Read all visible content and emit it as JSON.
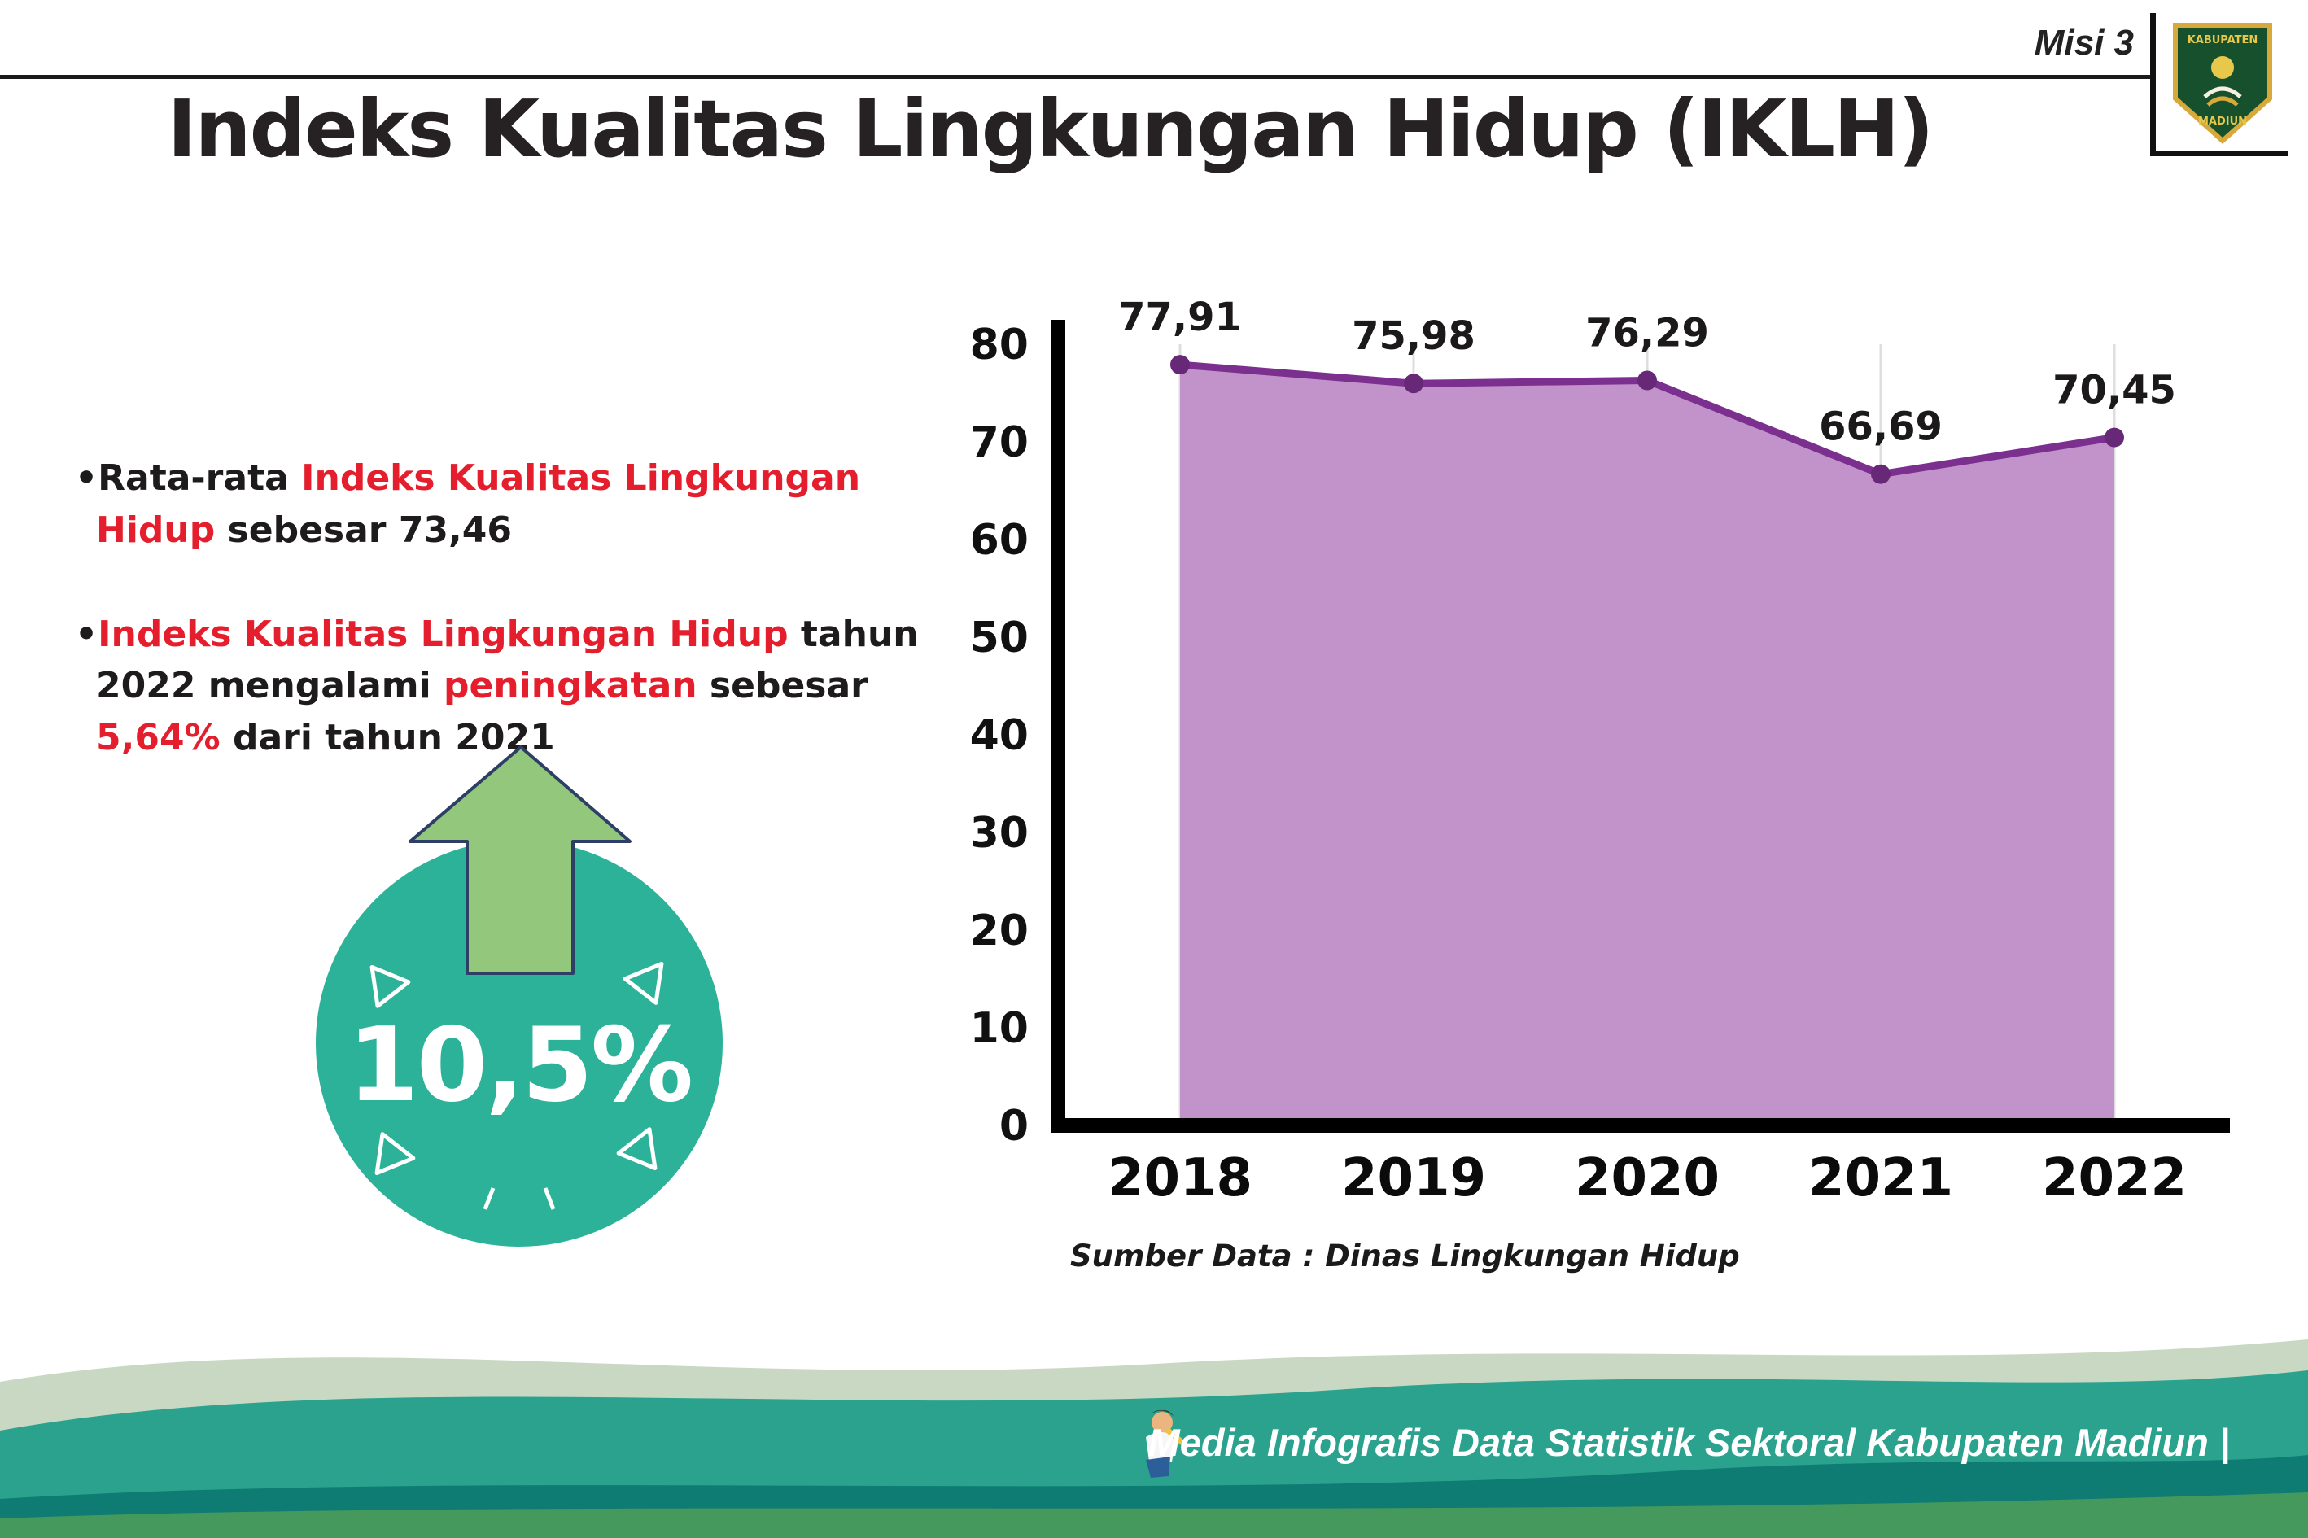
{
  "header": {
    "misi_label": "Misi 3",
    "title": "Indeks Kualitas Lingkungan Hidup (IKLH)",
    "logo": {
      "top_text": "KABUPATEN",
      "bottom_text": "MADIUN"
    }
  },
  "bullets": {
    "dot": "•",
    "b1": {
      "seg1": "Rata-rata ",
      "seg2": "Indeks Kualitas Lingkungan Hidup",
      "seg3": " sebesar 73,46"
    },
    "b2": {
      "seg1": "Indeks Kualitas Lingkungan Hidup",
      "seg2": " tahun 2022 mengalami ",
      "seg3": "peningkatan",
      "seg4": " sebesar ",
      "seg5": "5,64%",
      "seg6": " dari tahun 2021"
    }
  },
  "badge": {
    "value": "10,5%",
    "circle_color": "#2bb298",
    "arrow_color": "#92c77c"
  },
  "chart_data": {
    "type": "area",
    "title": "",
    "categories": [
      "2018",
      "2019",
      "2020",
      "2021",
      "2022"
    ],
    "values": [
      77.91,
      75.98,
      76.29,
      66.69,
      70.45
    ],
    "value_labels": [
      "77,91",
      "75,98",
      "76,29",
      "66,69",
      "70,45"
    ],
    "ylim": [
      0,
      80
    ],
    "yticks": [
      0,
      10,
      20,
      30,
      40,
      50,
      60,
      70,
      80
    ],
    "grid": "vertical",
    "legend": "none",
    "source": "Sumber Data : Dinas Lingkungan Hidup",
    "colors": {
      "fill": "#c293cb",
      "line": "#7b2f8e",
      "point": "#682878",
      "axis": "#000000",
      "tick_label": "#111111",
      "value_label": "#1c191a"
    }
  },
  "footer": {
    "credit": "Media Infografis Data Statistik Sektoral Kabupaten Madiun |"
  }
}
